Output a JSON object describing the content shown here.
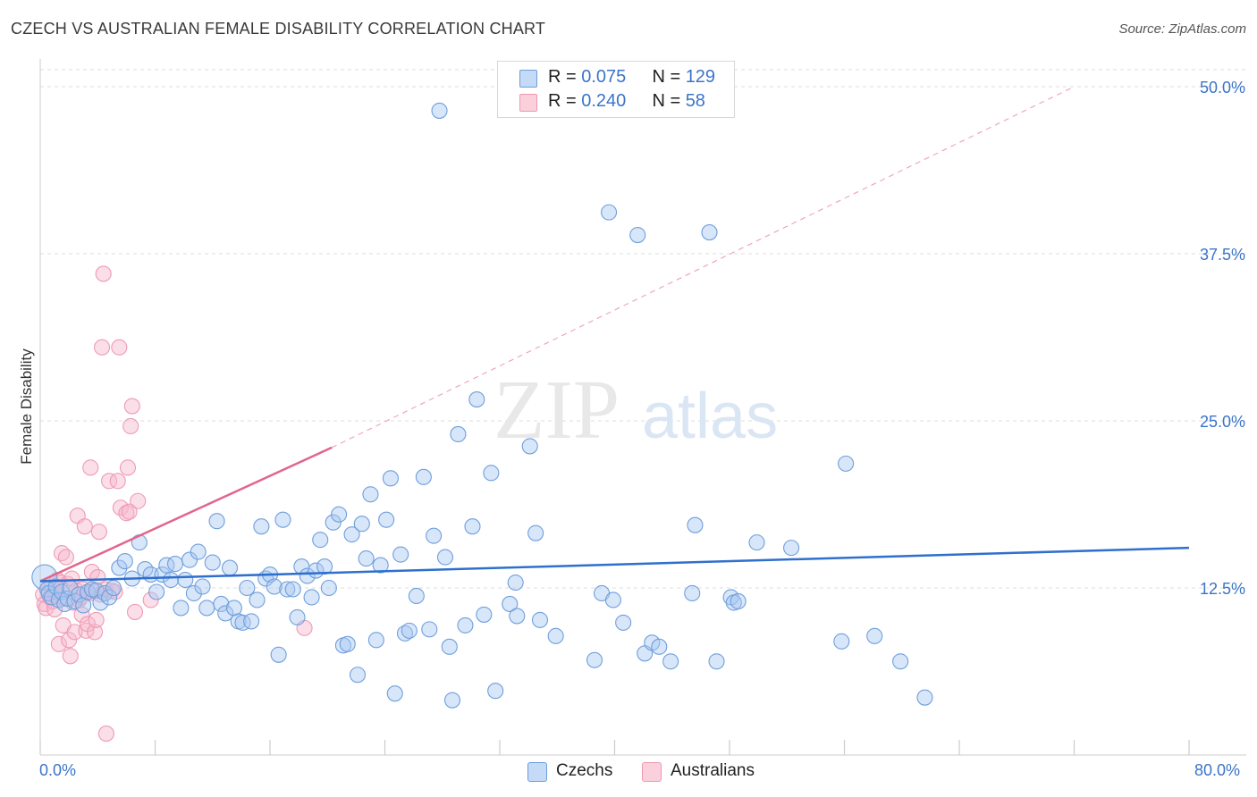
{
  "title": "CZECH VS AUSTRALIAN FEMALE DISABILITY CORRELATION CHART",
  "source": "Source: ZipAtlas.com",
  "watermark": {
    "zip": "ZIP",
    "atlas": "atlas"
  },
  "legend": {
    "czechs": {
      "r_label": "R = ",
      "r_value": "0.075",
      "n_label": "N = ",
      "n_value": "129"
    },
    "australians": {
      "r_label": "R = ",
      "r_value": "0.240",
      "n_label": "N = ",
      "n_value": "58"
    }
  },
  "bottom_legend": {
    "czechs": "Czechs",
    "australians": "Australians"
  },
  "x_tick_left": "0.0%",
  "x_tick_right": "80.0%",
  "colors": {
    "czechs": "#a9c8f2",
    "czechs_line": "#2f6fce",
    "australians": "#f6b8cb",
    "australians_line": "#e2658d",
    "tick": "#3b74c9"
  },
  "chart_data": {
    "type": "scatter",
    "title": "CZECH VS AUSTRALIAN FEMALE DISABILITY CORRELATION CHART",
    "xlabel": "",
    "ylabel": "Female Disability",
    "xlim": [
      0,
      80
    ],
    "ylim": [
      0,
      50
    ],
    "y_ticks": [
      {
        "value": 12.5,
        "label": "12.5%"
      },
      {
        "value": 25.0,
        "label": "25.0%"
      },
      {
        "value": 37.5,
        "label": "37.5%"
      },
      {
        "value": 50.0,
        "label": "50.0%"
      }
    ],
    "grid": true,
    "series": [
      {
        "name": "Czechs",
        "points": [
          [
            0.3,
            13.3
          ],
          [
            0.5,
            12.4
          ],
          [
            0.6,
            12.1
          ],
          [
            0.8,
            11.8
          ],
          [
            1.1,
            12.6
          ],
          [
            1.3,
            11.6
          ],
          [
            1.5,
            12.2
          ],
          [
            1.7,
            11.3
          ],
          [
            1.9,
            11.7
          ],
          [
            2.1,
            12.5
          ],
          [
            2.4,
            11.5
          ],
          [
            2.7,
            12.0
          ],
          [
            3.0,
            11.2
          ],
          [
            3.3,
            12.2
          ],
          [
            3.6,
            12.4
          ],
          [
            3.9,
            12.3
          ],
          [
            4.2,
            11.4
          ],
          [
            4.5,
            12.1
          ],
          [
            4.8,
            11.8
          ],
          [
            5.1,
            12.5
          ],
          [
            5.5,
            14.0
          ],
          [
            5.9,
            14.5
          ],
          [
            6.4,
            13.2
          ],
          [
            6.9,
            15.9
          ],
          [
            7.3,
            13.9
          ],
          [
            7.7,
            13.5
          ],
          [
            8.1,
            12.2
          ],
          [
            8.5,
            13.5
          ],
          [
            8.8,
            14.2
          ],
          [
            9.1,
            13.1
          ],
          [
            9.4,
            14.3
          ],
          [
            9.8,
            11.0
          ],
          [
            10.1,
            13.1
          ],
          [
            10.4,
            14.6
          ],
          [
            10.7,
            12.1
          ],
          [
            11.0,
            15.2
          ],
          [
            11.3,
            12.6
          ],
          [
            11.6,
            11.0
          ],
          [
            12.0,
            14.4
          ],
          [
            12.3,
            17.5
          ],
          [
            12.6,
            11.3
          ],
          [
            12.9,
            10.6
          ],
          [
            13.2,
            14.0
          ],
          [
            13.5,
            11.0
          ],
          [
            13.8,
            10.0
          ],
          [
            14.1,
            9.9
          ],
          [
            14.4,
            12.5
          ],
          [
            14.7,
            10.0
          ],
          [
            15.1,
            11.6
          ],
          [
            15.4,
            17.1
          ],
          [
            15.7,
            13.2
          ],
          [
            16.0,
            13.5
          ],
          [
            16.3,
            12.6
          ],
          [
            16.6,
            7.5
          ],
          [
            16.9,
            17.6
          ],
          [
            17.2,
            12.4
          ],
          [
            17.6,
            12.4
          ],
          [
            17.9,
            10.3
          ],
          [
            18.2,
            14.1
          ],
          [
            18.6,
            13.4
          ],
          [
            18.9,
            11.8
          ],
          [
            19.2,
            13.8
          ],
          [
            19.5,
            16.1
          ],
          [
            19.8,
            14.1
          ],
          [
            20.1,
            12.5
          ],
          [
            20.4,
            17.4
          ],
          [
            20.8,
            18.0
          ],
          [
            21.1,
            8.2
          ],
          [
            21.4,
            8.3
          ],
          [
            21.7,
            16.5
          ],
          [
            22.1,
            6.0
          ],
          [
            22.4,
            17.3
          ],
          [
            22.7,
            14.7
          ],
          [
            23.0,
            19.5
          ],
          [
            23.4,
            8.6
          ],
          [
            23.7,
            14.2
          ],
          [
            24.1,
            17.6
          ],
          [
            24.4,
            20.7
          ],
          [
            24.7,
            4.6
          ],
          [
            25.1,
            15.0
          ],
          [
            25.4,
            9.1
          ],
          [
            25.7,
            9.3
          ],
          [
            26.2,
            11.9
          ],
          [
            26.7,
            20.8
          ],
          [
            27.1,
            9.4
          ],
          [
            27.4,
            16.4
          ],
          [
            27.8,
            48.2
          ],
          [
            28.2,
            14.8
          ],
          [
            28.5,
            8.1
          ],
          [
            28.7,
            4.1
          ],
          [
            29.1,
            24.0
          ],
          [
            29.6,
            9.7
          ],
          [
            30.1,
            17.1
          ],
          [
            30.4,
            26.6
          ],
          [
            30.9,
            10.5
          ],
          [
            31.4,
            21.1
          ],
          [
            31.7,
            4.8
          ],
          [
            32.7,
            11.3
          ],
          [
            33.1,
            12.9
          ],
          [
            33.2,
            10.4
          ],
          [
            34.1,
            23.1
          ],
          [
            34.5,
            16.6
          ],
          [
            34.8,
            10.1
          ],
          [
            35.9,
            8.9
          ],
          [
            38.6,
            7.1
          ],
          [
            39.1,
            12.1
          ],
          [
            39.6,
            40.6
          ],
          [
            39.9,
            11.6
          ],
          [
            40.6,
            9.9
          ],
          [
            41.6,
            38.9
          ],
          [
            42.1,
            7.6
          ],
          [
            42.6,
            8.4
          ],
          [
            43.1,
            8.1
          ],
          [
            43.9,
            7.0
          ],
          [
            45.4,
            12.1
          ],
          [
            45.6,
            17.2
          ],
          [
            46.6,
            39.1
          ],
          [
            47.1,
            7.0
          ],
          [
            48.1,
            11.8
          ],
          [
            48.3,
            11.4
          ],
          [
            48.6,
            11.5
          ],
          [
            49.9,
            15.9
          ],
          [
            52.3,
            15.5
          ],
          [
            55.8,
            8.5
          ],
          [
            56.1,
            21.8
          ],
          [
            58.1,
            8.9
          ],
          [
            59.9,
            7.0
          ],
          [
            61.6,
            4.3
          ]
        ],
        "trend": {
          "x": [
            0,
            80
          ],
          "y": [
            13.0,
            15.5
          ]
        }
      },
      {
        "name": "Australians",
        "points": [
          [
            0.2,
            12.0
          ],
          [
            0.3,
            11.3
          ],
          [
            0.4,
            11.0
          ],
          [
            0.5,
            12.4
          ],
          [
            0.7,
            11.8
          ],
          [
            0.8,
            12.6
          ],
          [
            0.9,
            11.5
          ],
          [
            1.0,
            10.9
          ],
          [
            1.1,
            12.2
          ],
          [
            1.2,
            13.1
          ],
          [
            1.3,
            8.3
          ],
          [
            1.4,
            12.9
          ],
          [
            1.5,
            15.1
          ],
          [
            1.6,
            9.7
          ],
          [
            1.7,
            11.7
          ],
          [
            1.8,
            14.8
          ],
          [
            1.9,
            12.8
          ],
          [
            2.0,
            8.6
          ],
          [
            2.1,
            7.4
          ],
          [
            2.2,
            13.2
          ],
          [
            2.3,
            11.4
          ],
          [
            2.4,
            9.2
          ],
          [
            2.5,
            12.3
          ],
          [
            2.6,
            17.9
          ],
          [
            2.7,
            11.6
          ],
          [
            2.8,
            11.8
          ],
          [
            2.9,
            10.5
          ],
          [
            3.0,
            12.4
          ],
          [
            3.1,
            17.1
          ],
          [
            3.2,
            9.3
          ],
          [
            3.3,
            9.8
          ],
          [
            3.4,
            12.1
          ],
          [
            3.5,
            21.5
          ],
          [
            3.6,
            13.7
          ],
          [
            3.7,
            12.3
          ],
          [
            3.8,
            9.2
          ],
          [
            3.9,
            10.1
          ],
          [
            4.0,
            13.3
          ],
          [
            4.1,
            16.7
          ],
          [
            4.2,
            12.0
          ],
          [
            4.3,
            30.5
          ],
          [
            4.4,
            36.0
          ],
          [
            4.5,
            12.4
          ],
          [
            4.6,
            1.6
          ],
          [
            4.8,
            20.5
          ],
          [
            5.0,
            12.3
          ],
          [
            5.2,
            12.2
          ],
          [
            5.4,
            20.5
          ],
          [
            5.5,
            30.5
          ],
          [
            5.6,
            18.5
          ],
          [
            6.0,
            18.1
          ],
          [
            6.1,
            21.5
          ],
          [
            6.2,
            18.2
          ],
          [
            6.3,
            24.6
          ],
          [
            6.4,
            26.1
          ],
          [
            6.6,
            10.7
          ],
          [
            6.8,
            19.0
          ],
          [
            7.7,
            11.6
          ],
          [
            18.4,
            9.5
          ]
        ],
        "trend": {
          "x": [
            0,
            20.3
          ],
          "y": [
            13.0,
            23.0
          ]
        },
        "trend_extension": {
          "x": [
            20.3,
            72
          ],
          "y": [
            23.0,
            50.0
          ]
        }
      }
    ]
  }
}
